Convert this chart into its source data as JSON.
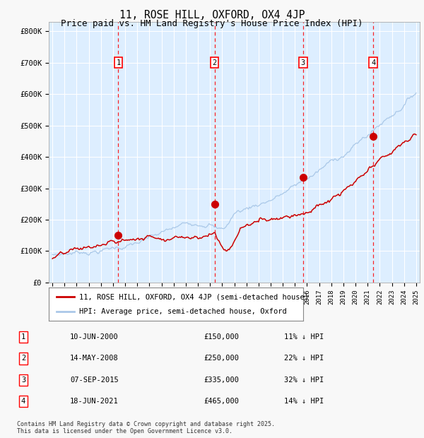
{
  "title": "11, ROSE HILL, OXFORD, OX4 4JP",
  "subtitle": "Price paid vs. HM Land Registry's House Price Index (HPI)",
  "title_fontsize": 10.5,
  "subtitle_fontsize": 9,
  "ylim": [
    0,
    830000
  ],
  "yticks": [
    0,
    100000,
    200000,
    300000,
    400000,
    500000,
    600000,
    700000,
    800000
  ],
  "ytick_labels": [
    "£0",
    "£100K",
    "£200K",
    "£300K",
    "£400K",
    "£500K",
    "£600K",
    "£700K",
    "£800K"
  ],
  "x_start_year": 1995,
  "x_end_year": 2025,
  "hpi_color": "#aac8e8",
  "price_color": "#cc0000",
  "bg_color": "#ddeeff",
  "grid_color": "#ffffff",
  "sale_points": [
    {
      "year": 2000.44,
      "price": 150000,
      "label": "1"
    },
    {
      "year": 2008.37,
      "price": 250000,
      "label": "2"
    },
    {
      "year": 2015.68,
      "price": 335000,
      "label": "3"
    },
    {
      "year": 2021.46,
      "price": 465000,
      "label": "4"
    }
  ],
  "legend_line1": "11, ROSE HILL, OXFORD, OX4 4JP (semi-detached house)",
  "legend_line2": "HPI: Average price, semi-detached house, Oxford",
  "table_data": [
    {
      "num": "1",
      "date": "10-JUN-2000",
      "price": "£150,000",
      "pct": "11% ↓ HPI"
    },
    {
      "num": "2",
      "date": "14-MAY-2008",
      "price": "£250,000",
      "pct": "22% ↓ HPI"
    },
    {
      "num": "3",
      "date": "07-SEP-2015",
      "price": "£335,000",
      "pct": "32% ↓ HPI"
    },
    {
      "num": "4",
      "date": "18-JUN-2021",
      "price": "£465,000",
      "pct": "14% ↓ HPI"
    }
  ],
  "footnote": "Contains HM Land Registry data © Crown copyright and database right 2025.\nThis data is licensed under the Open Government Licence v3.0.",
  "fig_width": 6.0,
  "fig_height": 6.2,
  "fig_dpi": 100
}
